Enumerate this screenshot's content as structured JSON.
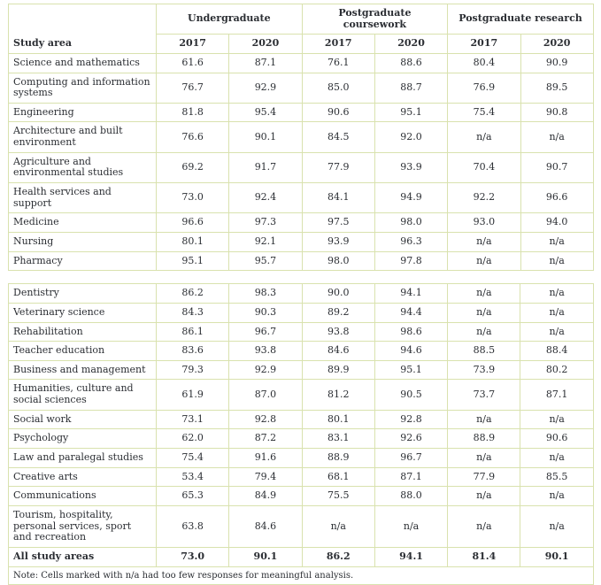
{
  "colors": {
    "border": "#d9e2ae",
    "text": "#2b2e33",
    "background": "#ffffff"
  },
  "chart_data": {
    "type": "table",
    "title": "",
    "row_header": "Study area",
    "column_groups": [
      "Undergraduate",
      "Postgraduate coursework",
      "Postgraduate research"
    ],
    "year_columns": [
      "2017",
      "2020",
      "2017",
      "2020",
      "2017",
      "2020"
    ],
    "na_text": "n/a",
    "sections": [
      [
        {
          "label": "Science and mathematics",
          "values": [
            "61.6",
            "87.1",
            "76.1",
            "88.6",
            "80.4",
            "90.9"
          ]
        },
        {
          "label": "Computing and information systems",
          "values": [
            "76.7",
            "92.9",
            "85.0",
            "88.7",
            "76.9",
            "89.5"
          ]
        },
        {
          "label": "Engineering",
          "values": [
            "81.8",
            "95.4",
            "90.6",
            "95.1",
            "75.4",
            "90.8"
          ]
        },
        {
          "label": "Architecture and built environment",
          "values": [
            "76.6",
            "90.1",
            "84.5",
            "92.0",
            "n/a",
            "n/a"
          ]
        },
        {
          "label": "Agriculture and environmental studies",
          "values": [
            "69.2",
            "91.7",
            "77.9",
            "93.9",
            "70.4",
            "90.7"
          ]
        },
        {
          "label": "Health services and support",
          "values": [
            "73.0",
            "92.4",
            "84.1",
            "94.9",
            "92.2",
            "96.6"
          ]
        },
        {
          "label": "Medicine",
          "values": [
            "96.6",
            "97.3",
            "97.5",
            "98.0",
            "93.0",
            "94.0"
          ]
        },
        {
          "label": "Nursing",
          "values": [
            "80.1",
            "92.1",
            "93.9",
            "96.3",
            "n/a",
            "n/a"
          ]
        },
        {
          "label": "Pharmacy",
          "values": [
            "95.1",
            "95.7",
            "98.0",
            "97.8",
            "n/a",
            "n/a"
          ]
        }
      ],
      [
        {
          "label": "Dentistry",
          "values": [
            "86.2",
            "98.3",
            "90.0",
            "94.1",
            "n/a",
            "n/a"
          ]
        },
        {
          "label": "Veterinary science",
          "values": [
            "84.3",
            "90.3",
            "89.2",
            "94.4",
            "n/a",
            "n/a"
          ]
        },
        {
          "label": "Rehabilitation",
          "values": [
            "86.1",
            "96.7",
            "93.8",
            "98.6",
            "n/a",
            "n/a"
          ]
        },
        {
          "label": "Teacher education",
          "values": [
            "83.6",
            "93.8",
            "84.6",
            "94.6",
            "88.5",
            "88.4"
          ]
        },
        {
          "label": "Business and management",
          "values": [
            "79.3",
            "92.9",
            "89.9",
            "95.1",
            "73.9",
            "80.2"
          ]
        },
        {
          "label": "Humanities, culture and social sciences",
          "values": [
            "61.9",
            "87.0",
            "81.2",
            "90.5",
            "73.7",
            "87.1"
          ]
        },
        {
          "label": "Social work",
          "values": [
            "73.1",
            "92.8",
            "80.1",
            "92.8",
            "n/a",
            "n/a"
          ]
        },
        {
          "label": "Psychology",
          "values": [
            "62.0",
            "87.2",
            "83.1",
            "92.6",
            "88.9",
            "90.6"
          ]
        },
        {
          "label": "Law and paralegal studies",
          "values": [
            "75.4",
            "91.6",
            "88.9",
            "96.7",
            "n/a",
            "n/a"
          ]
        },
        {
          "label": "Creative arts",
          "values": [
            "53.4",
            "79.4",
            "68.1",
            "87.1",
            "77.9",
            "85.5"
          ]
        },
        {
          "label": "Communications",
          "values": [
            "65.3",
            "84.9",
            "75.5",
            "88.0",
            "n/a",
            "n/a"
          ]
        },
        {
          "label": "Tourism, hospitality, personal services, sport and recreation",
          "values": [
            "63.8",
            "84.6",
            "n/a",
            "n/a",
            "n/a",
            "n/a"
          ]
        },
        {
          "label": "All study areas",
          "values": [
            "73.0",
            "90.1",
            "86.2",
            "94.1",
            "81.4",
            "90.1"
          ],
          "bold": true
        }
      ]
    ],
    "note": "Note: Cells marked with n/a had too few responses for meaningful analysis."
  }
}
